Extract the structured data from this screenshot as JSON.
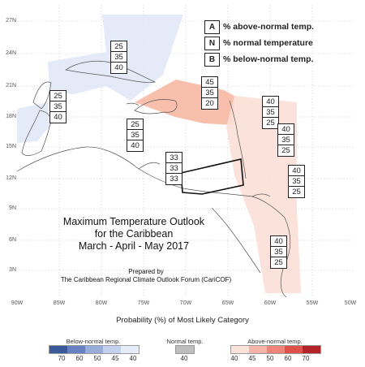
{
  "map": {
    "title_lines": [
      "Maximum Temperature Outlook",
      "for the Caribbean",
      "March - April - May 2017"
    ],
    "prepared_lines": [
      "Prepared by",
      "The Caribbean Regional Climate Outlook Forum (CariCOF)"
    ],
    "lat_labels": [
      "27N",
      "24N",
      "21N",
      "18N",
      "15N",
      "12N",
      "9N",
      "6N",
      "3N"
    ],
    "lon_labels": [
      "90W",
      "85W",
      "80W",
      "75W",
      "70W",
      "65W",
      "60W",
      "55W",
      "50W"
    ],
    "caption": "Probability (%) of Most Likely Category"
  },
  "key": {
    "above_letter": "A",
    "above_text": "% above-normal temp.",
    "normal_letter": "N",
    "normal_text": "% normal temperature",
    "below_letter": "B",
    "below_text": "% below-normal temp."
  },
  "regions": [
    {
      "id": "cuba",
      "values": [
        "25",
        "35",
        "40"
      ]
    },
    {
      "id": "western-caribbean",
      "values": [
        "25",
        "35",
        "40"
      ]
    },
    {
      "id": "central-caribbean",
      "values": [
        "25",
        "35",
        "40"
      ]
    },
    {
      "id": "hispaniola",
      "values": [
        "45",
        "35",
        "20"
      ]
    },
    {
      "id": "northern-antilles",
      "values": [
        "40",
        "35",
        "25"
      ]
    },
    {
      "id": "lesser-antilles",
      "values": [
        "40",
        "35",
        "25"
      ]
    },
    {
      "id": "southern-caribbean",
      "values": [
        "33",
        "33",
        "33"
      ]
    },
    {
      "id": "barbados",
      "values": [
        "40",
        "35",
        "25"
      ]
    },
    {
      "id": "guianas",
      "values": [
        "40",
        "35",
        "25"
      ]
    }
  ],
  "colorbar": {
    "below": {
      "title": "Below-normal temp.",
      "labels": [
        "70",
        "60",
        "50",
        "45",
        "40"
      ],
      "colors": [
        "#3b5a9a",
        "#6680c0",
        "#97acd9",
        "#c3d1ee",
        "#e6ecf8"
      ]
    },
    "normal": {
      "title": "Normal temp.",
      "labels": [
        "40"
      ],
      "colors": [
        "#bdbdbd"
      ]
    },
    "above": {
      "title": "Above-normal temp.",
      "labels": [
        "40",
        "45",
        "50",
        "60",
        "70"
      ],
      "colors": [
        "#fbe3dc",
        "#f6b4a8",
        "#ef8578",
        "#e0514c",
        "#b5232a"
      ]
    }
  }
}
